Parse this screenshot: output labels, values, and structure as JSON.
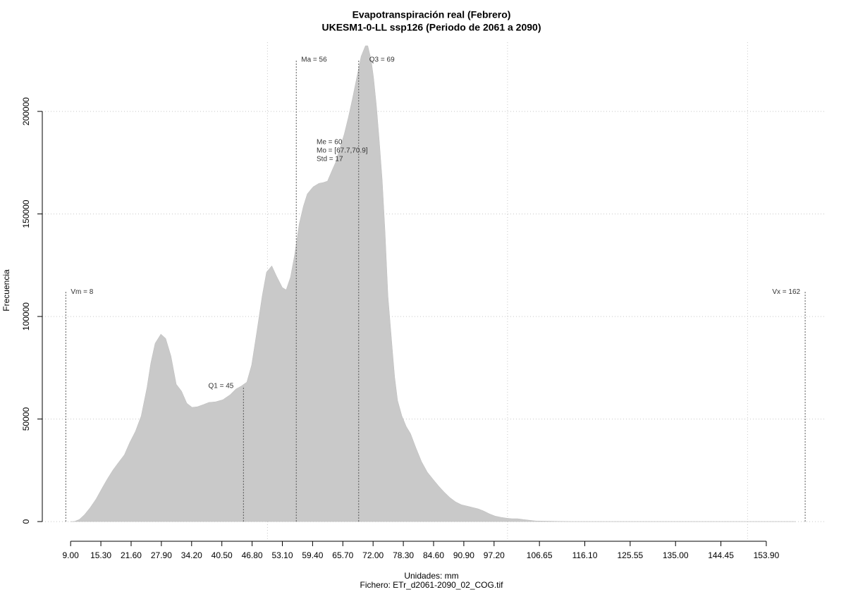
{
  "chart_data": {
    "type": "area",
    "title": "Evapotranspiración real (Febrero)",
    "subtitle": "UKESM1-0-LL ssp126 (Periodo de 2061 a 2090)",
    "xlabel": "Unidades: mm",
    "caption": "Fichero: ETr_d2061-2090_02_COG.tif",
    "ylabel": "Frecuencia",
    "color": "#c9c9c9",
    "grid": true,
    "xlim": [
      3.1,
      166.1
    ],
    "ylim": [
      -9600,
      233700
    ],
    "yticks": [
      0,
      50000,
      100000,
      150000,
      200000
    ],
    "xticks": [
      {
        "value": 9.0,
        "label": "9.00"
      },
      {
        "value": 15.3,
        "label": "15.30"
      },
      {
        "value": 21.6,
        "label": "21.60"
      },
      {
        "value": 27.9,
        "label": "27.90"
      },
      {
        "value": 34.2,
        "label": "34.20"
      },
      {
        "value": 40.5,
        "label": "40.50"
      },
      {
        "value": 46.8,
        "label": "46.80"
      },
      {
        "value": 53.1,
        "label": "53.10"
      },
      {
        "value": 59.4,
        "label": "59.40"
      },
      {
        "value": 65.7,
        "label": "65.70"
      },
      {
        "value": 72.0,
        "label": "72.00"
      },
      {
        "value": 78.3,
        "label": "78.30"
      },
      {
        "value": 84.6,
        "label": "84.60"
      },
      {
        "value": 90.9,
        "label": "90.90"
      },
      {
        "value": 97.2,
        "label": "97.20"
      },
      {
        "value": 106.65,
        "label": "106.65"
      },
      {
        "value": 116.1,
        "label": "116.10"
      },
      {
        "value": 125.55,
        "label": "125.55"
      },
      {
        "value": 135.0,
        "label": "135.00"
      },
      {
        "value": 144.45,
        "label": "144.45"
      },
      {
        "value": 153.9,
        "label": "153.90"
      }
    ],
    "xgrid": [
      50,
      100,
      150
    ],
    "x": [
      9.0,
      9.7,
      10.8,
      11.9,
      13.1,
      14.3,
      15.6,
      16.6,
      17.8,
      19.0,
      20.2,
      21.3,
      22.5,
      23.7,
      24.9,
      25.7,
      26.6,
      27.8,
      28.8,
      29.9,
      31.0,
      32.1,
      33.2,
      34.3,
      35.4,
      36.6,
      37.8,
      39.2,
      40.7,
      42.2,
      43.4,
      44.5,
      45.7,
      46.7,
      47.8,
      48.9,
      49.8,
      50.9,
      51.9,
      53.1,
      53.9,
      54.8,
      55.7,
      56.6,
      57.5,
      58.3,
      59.5,
      60.7,
      61.6,
      62.5,
      63.3,
      64.2,
      65.1,
      66.0,
      66.9,
      67.7,
      68.6,
      69.5,
      70.4,
      70.9,
      71.6,
      72.1,
      72.7,
      73.3,
      73.9,
      74.5,
      75.1,
      76.0,
      76.5,
      77.1,
      78.0,
      78.9,
      79.8,
      80.9,
      82.1,
      83.3,
      84.5,
      85.7,
      86.8,
      88.0,
      89.2,
      90.4,
      91.5,
      92.7,
      93.9,
      95.0,
      96.2,
      97.4,
      98.6,
      99.7,
      100.9,
      102.1,
      103.3,
      104.4,
      105.9,
      108.9,
      113.3,
      126.5,
      141.2,
      160.0
    ],
    "values": [
      0,
      0,
      1000,
      3400,
      6900,
      11000,
      16500,
      20600,
      25100,
      28900,
      32600,
      38500,
      44000,
      51500,
      65300,
      77300,
      86900,
      91400,
      89300,
      80700,
      67000,
      63600,
      57700,
      55700,
      56000,
      57000,
      58100,
      58400,
      59400,
      61800,
      64600,
      66000,
      68000,
      76300,
      92800,
      110000,
      121600,
      124700,
      119600,
      114100,
      113000,
      119200,
      130600,
      145000,
      153900,
      159800,
      163200,
      164900,
      165300,
      166000,
      170400,
      175200,
      182100,
      189000,
      197600,
      206200,
      216500,
      226800,
      232000,
      232000,
      225100,
      216500,
      202700,
      185500,
      166600,
      140900,
      110000,
      84200,
      70400,
      59100,
      51500,
      46400,
      42900,
      36100,
      29200,
      24100,
      20600,
      17200,
      14400,
      11700,
      9600,
      8200,
      7600,
      6900,
      6200,
      5200,
      3800,
      2700,
      2100,
      1700,
      1400,
      1400,
      1000,
      700,
      300,
      200,
      0,
      0,
      0,
      0
    ],
    "annotations": [
      {
        "label": "Vm = 8",
        "x": 8,
        "y": 112000
      },
      {
        "label": "Q1 = 45",
        "x": 45,
        "y": 66000
      },
      {
        "label": "Ma = 56",
        "x": 56,
        "y": 225100
      },
      {
        "label": "Q3 = 69",
        "x": 69,
        "y": 225100
      },
      {
        "label": "Vx = 162",
        "x": 162,
        "y": 112000
      }
    ],
    "stats": [
      "Me = 60",
      "Mo = [67.7,70.9]",
      "Std = 17"
    ]
  }
}
